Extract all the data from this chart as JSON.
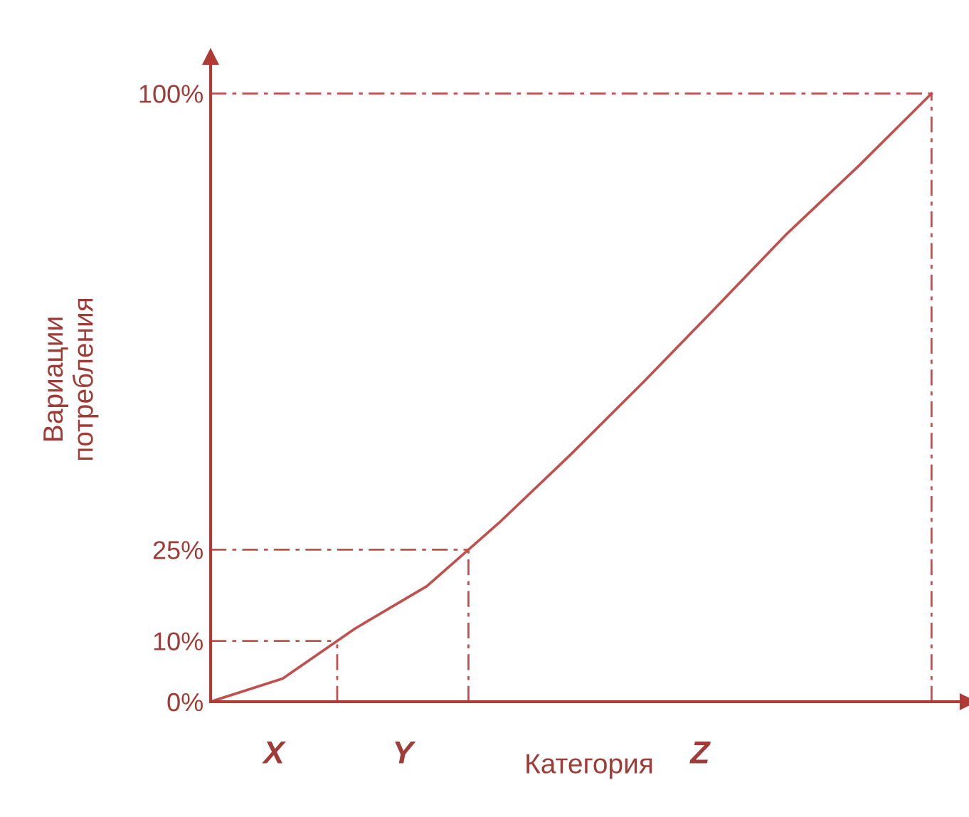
{
  "chart_data": {
    "type": "line",
    "xlabel": "Категория",
    "ylabel": "Вариации\nпотребления",
    "categories": [
      null,
      null,
      null,
      null,
      null,
      null,
      null,
      null,
      null,
      null,
      null
    ],
    "series": [
      {
        "color": "#c0504d",
        "values": [
          0,
          3.8,
          12,
          19,
          29.4,
          40.7,
          52.5,
          64.7,
          77,
          88.2,
          100
        ]
      }
    ],
    "ylim": [
      0,
      106
    ],
    "yticks": [
      {
        "value": 0,
        "label": "0%"
      },
      {
        "value": 10,
        "label": "10%"
      },
      {
        "value": 25,
        "label": "25%"
      },
      {
        "value": 100,
        "label": "100%"
      }
    ],
    "tick_labels": "y",
    "ref_lines": [
      {
        "axis": "y",
        "value": 10,
        "color": "#c0504d",
        "line_style": "dashed"
      },
      {
        "axis": "y",
        "value": 25,
        "color": "#c0504d",
        "line_style": "dashed"
      },
      {
        "axis": "y",
        "value": 100,
        "color": "#c0504d",
        "line_style": "dashed"
      }
    ],
    "annotations": [
      "X",
      "Y",
      "Z"
    ],
    "grid": false,
    "legend": false
  }
}
